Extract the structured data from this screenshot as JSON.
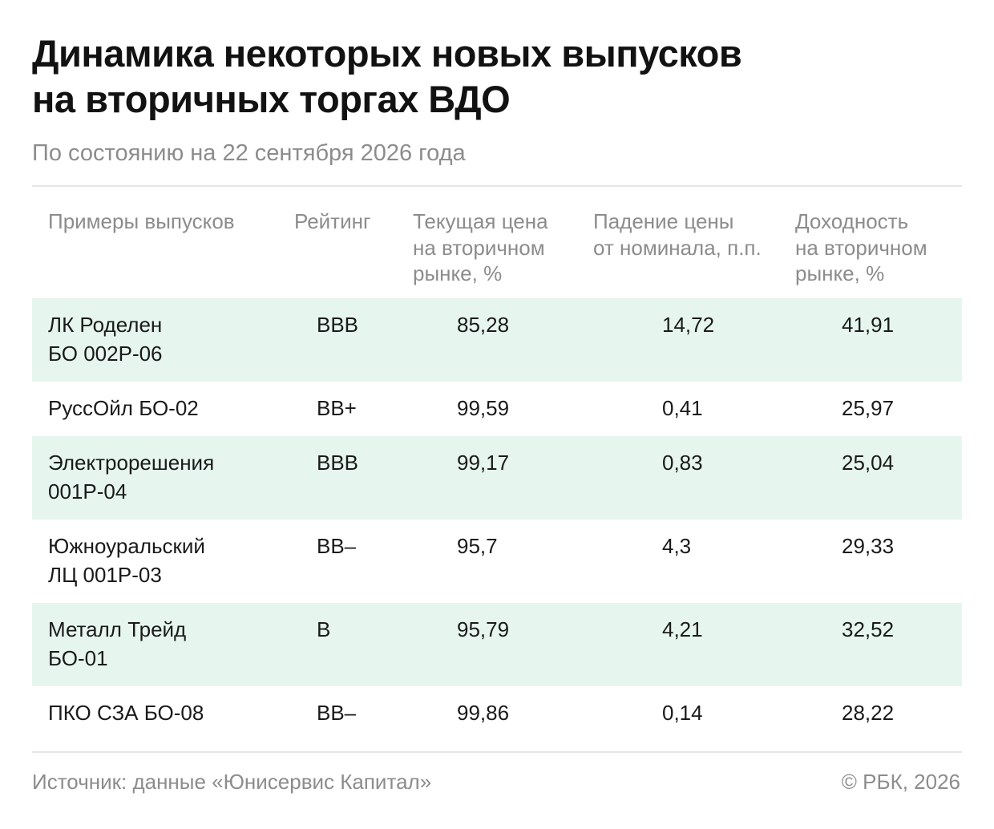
{
  "header": {
    "title_line1": "Динамика некоторых новых выпусков",
    "title_line2": "на вторичных торгах ВДО",
    "subtitle": "По состоянию на 22 сентября 2026 года"
  },
  "chart_data": {
    "type": "table",
    "columns": [
      "Примеры выпусков",
      "Рейтинг",
      "Текущая цена\nна вторичном\nрынке, %",
      "Падение цены\nот номинала, п.п.",
      "Доходность\nна вторичном\nрынке, %"
    ],
    "rows": [
      {
        "name": "ЛК Роделен\nБО 002Р-06",
        "rating": "BBB",
        "price": "85,28",
        "drop": "14,72",
        "yield": "41,91",
        "shaded": true
      },
      {
        "name": "РуссОйл БО-02",
        "rating": "BB+",
        "price": "99,59",
        "drop": "0,41",
        "yield": "25,97",
        "shaded": false
      },
      {
        "name": "Электрорешения\n001Р-04",
        "rating": "BBB",
        "price": "99,17",
        "drop": "0,83",
        "yield": "25,04",
        "shaded": true
      },
      {
        "name": "Южноуральский\nЛЦ 001Р-03",
        "rating": "BB–",
        "price": "95,7",
        "drop": "4,3",
        "yield": "29,33",
        "shaded": false
      },
      {
        "name": "Металл Трейд\nБО-01",
        "rating": "B",
        "price": "95,79",
        "drop": "4,21",
        "yield": "32,52",
        "shaded": true
      },
      {
        "name": "ПКО СЗА БО-08",
        "rating": "BB–",
        "price": "99,86",
        "drop": "0,14",
        "yield": "28,22",
        "shaded": false
      }
    ]
  },
  "footer": {
    "source": "Источник: данные «Юнисервис Капитал»",
    "copyright": "© РБК, 2026"
  },
  "colors": {
    "row_shade": "#e6f6ee",
    "muted_text": "#8c8c8c",
    "rule": "#e6e6e6"
  }
}
